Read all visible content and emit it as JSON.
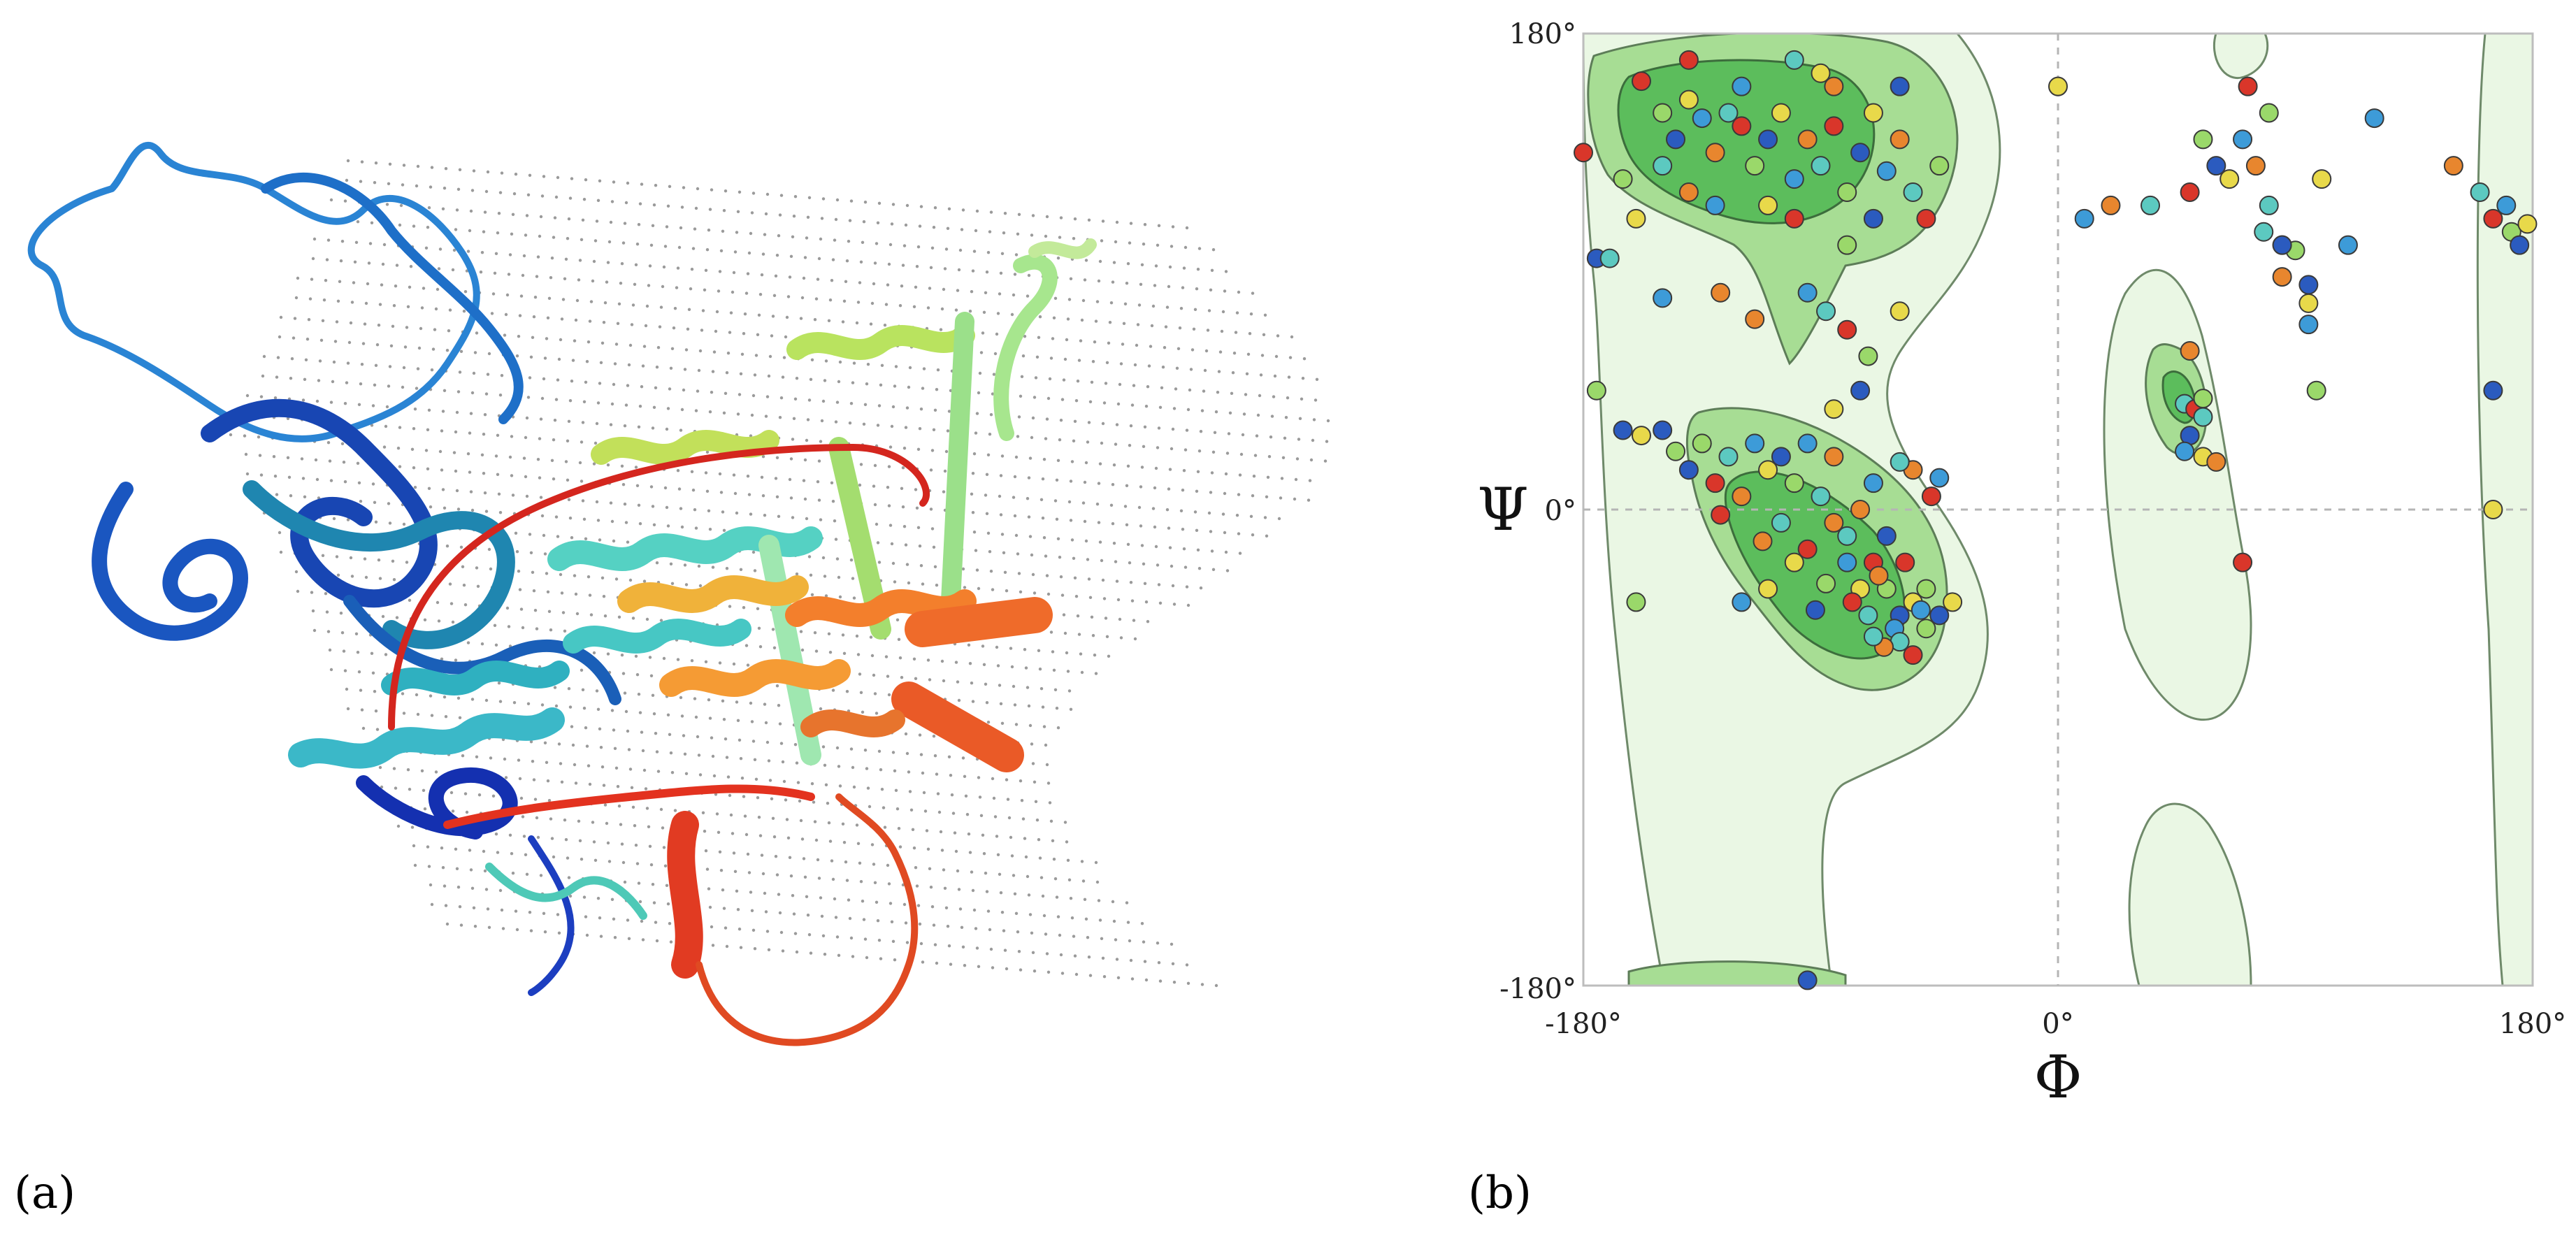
{
  "figure": {
    "panel_a": {
      "label": "(a)"
    },
    "panel_b": {
      "label": "(b)"
    }
  },
  "chart_data": {
    "type": "scatter",
    "xlabel": "Φ",
    "ylabel": "Ψ",
    "xlim": [
      -180,
      180
    ],
    "ylim": [
      -180,
      180
    ],
    "x_ticks": [
      {
        "value": -180,
        "label": "-180°"
      },
      {
        "value": 0,
        "label": "0°"
      },
      {
        "value": 180,
        "label": "180°"
      }
    ],
    "y_ticks": [
      {
        "value": 180,
        "label": "180°"
      },
      {
        "value": 0,
        "label": "0°"
      },
      {
        "value": -180,
        "label": "-180°"
      }
    ],
    "colors": {
      "outer_region": "#eaf7e4",
      "allowed_region": "#a7dd94",
      "favored_region": "#5cbd5c",
      "points": [
        "#d9362a",
        "#e8862e",
        "#e8d94a",
        "#9ad86a",
        "#5cc9c0",
        "#3d9bd8",
        "#2b5bbf"
      ]
    },
    "points": [
      [
        -158,
        162
      ],
      [
        -150,
        150
      ],
      [
        -145,
        140
      ],
      [
        -140,
        155
      ],
      [
        -135,
        148
      ],
      [
        -130,
        135
      ],
      [
        -125,
        150
      ],
      [
        -120,
        145
      ],
      [
        -115,
        130
      ],
      [
        -110,
        140
      ],
      [
        -105,
        150
      ],
      [
        -100,
        125
      ],
      [
        -95,
        140
      ],
      [
        -90,
        130
      ],
      [
        -85,
        145
      ],
      [
        -80,
        120
      ],
      [
        -75,
        135
      ],
      [
        -70,
        150
      ],
      [
        -65,
        128
      ],
      [
        -60,
        140
      ],
      [
        -55,
        120
      ],
      [
        -50,
        110
      ],
      [
        -45,
        130
      ],
      [
        -60,
        160
      ],
      [
        -90,
        165
      ],
      [
        -120,
        160
      ],
      [
        -140,
        120
      ],
      [
        -150,
        130
      ],
      [
        -100,
        110
      ],
      [
        -80,
        100
      ],
      [
        -70,
        110
      ],
      [
        -110,
        115
      ],
      [
        -130,
        115
      ],
      [
        -85,
        160
      ],
      [
        -100,
        170
      ],
      [
        -140,
        170
      ],
      [
        -165,
        125
      ],
      [
        -175,
        95
      ],
      [
        -160,
        110
      ],
      [
        -150,
        80
      ],
      [
        -128,
        82
      ],
      [
        -88,
        75
      ],
      [
        -80,
        68
      ],
      [
        -72,
        58
      ],
      [
        -75,
        45
      ],
      [
        -85,
        38
      ],
      [
        -95,
        82
      ],
      [
        -115,
        72
      ],
      [
        -170,
        95
      ],
      [
        -180,
        135
      ],
      [
        -175,
        45
      ],
      [
        -165,
        30
      ],
      [
        -60,
        75
      ],
      [
        -70,
        10
      ],
      [
        -75,
        0
      ],
      [
        -80,
        -10
      ],
      [
        -70,
        -20
      ],
      [
        -65,
        -30
      ],
      [
        -60,
        -40
      ],
      [
        -55,
        -35
      ],
      [
        -62,
        -45
      ],
      [
        -68,
        -25
      ],
      [
        -72,
        -40
      ],
      [
        -58,
        -20
      ],
      [
        -50,
        -30
      ],
      [
        -65,
        -10
      ],
      [
        -75,
        -30
      ],
      [
        -80,
        -20
      ],
      [
        -85,
        -5
      ],
      [
        -90,
        5
      ],
      [
        -95,
        -15
      ],
      [
        -100,
        10
      ],
      [
        -105,
        20
      ],
      [
        -110,
        15
      ],
      [
        -115,
        25
      ],
      [
        -120,
        5
      ],
      [
        -125,
        20
      ],
      [
        -130,
        10
      ],
      [
        -135,
        25
      ],
      [
        -140,
        15
      ],
      [
        -100,
        -20
      ],
      [
        -95,
        25
      ],
      [
        -85,
        20
      ],
      [
        -60,
        -50
      ],
      [
        -55,
        -55
      ],
      [
        -50,
        -45
      ],
      [
        -45,
        -40
      ],
      [
        -40,
        -35
      ],
      [
        -52,
        -38
      ],
      [
        -66,
        -52
      ],
      [
        -70,
        -48
      ],
      [
        -78,
        -35
      ],
      [
        -88,
        -28
      ],
      [
        -92,
        -38
      ],
      [
        -110,
        -30
      ],
      [
        -120,
        -35
      ],
      [
        -112,
        -12
      ],
      [
        -105,
        -5
      ],
      [
        -128,
        -2
      ],
      [
        -145,
        22
      ],
      [
        -150,
        30
      ],
      [
        -158,
        28
      ],
      [
        -45,
        12
      ],
      [
        -55,
        15
      ],
      [
        -60,
        18
      ],
      [
        -48,
        5
      ],
      [
        -160,
        -35
      ],
      [
        -95,
        -178
      ],
      [
        0,
        160
      ],
      [
        10,
        110
      ],
      [
        20,
        115
      ],
      [
        35,
        115
      ],
      [
        50,
        120
      ],
      [
        55,
        140
      ],
      [
        60,
        130
      ],
      [
        65,
        125
      ],
      [
        70,
        140
      ],
      [
        75,
        130
      ],
      [
        80,
        115
      ],
      [
        85,
        100
      ],
      [
        90,
        98
      ],
      [
        95,
        85
      ],
      [
        95,
        78
      ],
      [
        95,
        70
      ],
      [
        85,
        88
      ],
      [
        78,
        105
      ],
      [
        72,
        160
      ],
      [
        80,
        150
      ],
      [
        85,
        100
      ],
      [
        100,
        125
      ],
      [
        120,
        148
      ],
      [
        150,
        130
      ],
      [
        160,
        120
      ],
      [
        165,
        110
      ],
      [
        172,
        105
      ],
      [
        175,
        100
      ],
      [
        178,
        108
      ],
      [
        170,
        115
      ],
      [
        50,
        60
      ],
      [
        48,
        40
      ],
      [
        52,
        38
      ],
      [
        55,
        42
      ],
      [
        50,
        28
      ],
      [
        55,
        20
      ],
      [
        48,
        22
      ],
      [
        60,
        18
      ],
      [
        55,
        35
      ],
      [
        70,
        -20
      ],
      [
        98,
        45
      ],
      [
        165,
        45
      ],
      [
        165,
        0
      ],
      [
        110,
        100
      ]
    ]
  }
}
